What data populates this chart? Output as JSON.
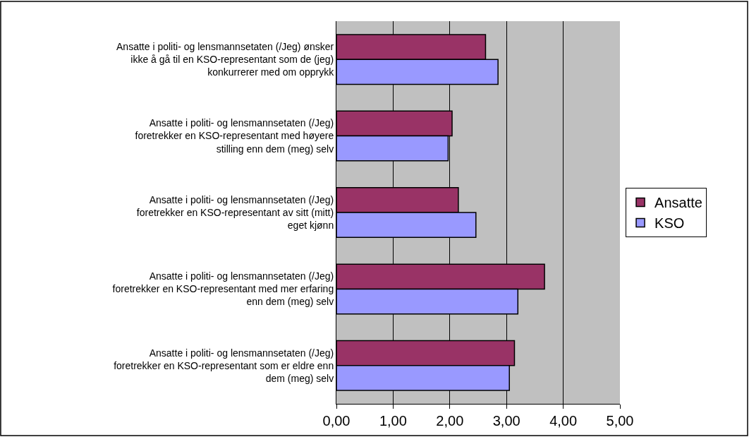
{
  "chart_data": {
    "type": "bar",
    "orientation": "horizontal",
    "categories": [
      "Ansatte i politi- og lensmannsetaten (/Jeg) ønsker ikke å gå til en KSO-representant som de (jeg) konkurrerer med om opprykk",
      "Ansatte i politi- og lensmannsetaten (/Jeg) foretrekker en KSO-representant med høyere stilling enn dem (meg) selv",
      "Ansatte i politi- og lensmannsetaten (/Jeg) foretrekker en KSO-representant av sitt (mitt) eget kjønn",
      "Ansatte i politi- og lensmannsetaten (/Jeg) foretrekker en KSO-representant med mer erfaring enn dem (meg) selv",
      "Ansatte i politi- og lensmannsetaten (/Jeg) foretrekker en KSO-representant som er eldre enn dem (meg) selv"
    ],
    "series": [
      {
        "name": "Ansatte",
        "color": "#993366",
        "values": [
          2.63,
          2.04,
          2.15,
          3.67,
          3.14
        ]
      },
      {
        "name": "KSO",
        "color": "#9999ff",
        "values": [
          2.85,
          1.97,
          2.46,
          3.2,
          3.05
        ]
      }
    ],
    "xlim": [
      0,
      5
    ],
    "xticks": [
      {
        "value": 0,
        "label": "0,00"
      },
      {
        "value": 1,
        "label": "1,00"
      },
      {
        "value": 2,
        "label": "2,00"
      },
      {
        "value": 3,
        "label": "3,00"
      },
      {
        "value": 4,
        "label": "4,00"
      },
      {
        "value": 5,
        "label": "5,00"
      }
    ],
    "grid": "x",
    "legend": "right"
  }
}
